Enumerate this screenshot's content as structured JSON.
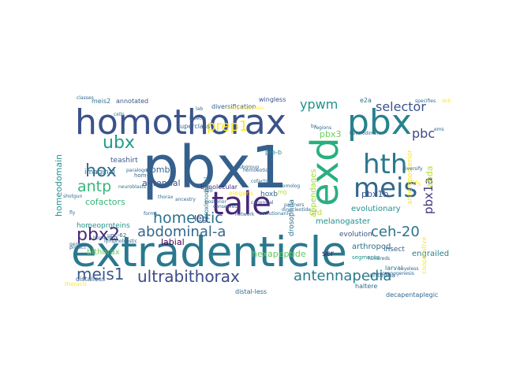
{
  "word_cloud": {
    "words": [
      {
        "text": "pbx1",
        "color": "#35608d"
      },
      {
        "text": "extradenticle",
        "color": "#2a788e"
      },
      {
        "text": "homothorax",
        "color": "#3b528b"
      },
      {
        "text": "exd",
        "color": "#29af7f"
      },
      {
        "text": "pbx",
        "color": "#26828e"
      },
      {
        "text": "tale",
        "color": "#482878"
      },
      {
        "text": "meis",
        "color": "#31688e"
      },
      {
        "text": "hth",
        "color": "#2a788e"
      },
      {
        "text": "ultrabithorax",
        "color": "#3e4a89"
      },
      {
        "text": "antennapedia",
        "color": "#287d8e"
      },
      {
        "text": "abdominal-a",
        "color": "#31688e"
      },
      {
        "text": "ceh-20",
        "color": "#2c728e"
      },
      {
        "text": "pbx2",
        "color": "#482878"
      },
      {
        "text": "meis1",
        "color": "#38598c"
      },
      {
        "text": "homeotic",
        "color": "#2c728e"
      },
      {
        "text": "prep1",
        "color": "#fde725"
      },
      {
        "text": "ubx",
        "color": "#1f9e89"
      },
      {
        "text": "hox",
        "color": "#2c728e"
      },
      {
        "text": "antp",
        "color": "#35b779"
      },
      {
        "text": "ypwm",
        "color": "#21918c"
      },
      {
        "text": "selector",
        "color": "#3b528b"
      },
      {
        "text": "pbc",
        "color": "#3e4a89"
      },
      {
        "text": "pbx1a",
        "color": "#443983"
      },
      {
        "text": "pbx1b",
        "color": "#3b528b"
      },
      {
        "text": "pbx3",
        "color": "#6ece58"
      },
      {
        "text": "abda",
        "color": "#b5de2b"
      },
      {
        "text": "hexapeptide",
        "color": "#5ec962"
      },
      {
        "text": "cofactors",
        "color": "#35b779"
      },
      {
        "text": "antennal",
        "color": "#3b528b"
      },
      {
        "text": "combs",
        "color": "#31688e"
      },
      {
        "text": "homeodomain",
        "color": "#21918c"
      },
      {
        "text": "bithorax",
        "color": "#6ece58"
      },
      {
        "text": "labial",
        "color": "#440154"
      },
      {
        "text": "leg",
        "color": "#3e4a89"
      },
      {
        "text": "arthropod",
        "color": "#2c728e"
      },
      {
        "text": "appendages",
        "color": "#a0da39"
      },
      {
        "text": "evolutionary",
        "color": "#21918c"
      },
      {
        "text": "dfd",
        "color": "#b5de2b"
      },
      {
        "text": "melanogaster",
        "color": "#21918c"
      },
      {
        "text": "scr",
        "color": "#471063"
      },
      {
        "text": "engrailed",
        "color": "#26828e"
      },
      {
        "text": "drosophila",
        "color": "#2c728e"
      },
      {
        "text": "evolution",
        "color": "#3b528b"
      },
      {
        "text": "bimolecular",
        "color": "#472d7b"
      },
      {
        "text": "teashirt",
        "color": "#38598c"
      },
      {
        "text": "imaginal",
        "color": "#31688e"
      },
      {
        "text": "diversification",
        "color": "#35608d"
      },
      {
        "text": "wingless",
        "color": "#3b528b"
      },
      {
        "text": "annotated",
        "color": "#3b528b"
      },
      {
        "text": "meis2",
        "color": "#2c728e"
      },
      {
        "text": "superclass",
        "color": "#35608d"
      },
      {
        "text": "homeoproteins",
        "color": "#21918c"
      },
      {
        "text": "hoxb",
        "color": "#31688e"
      },
      {
        "text": "pre-b",
        "color": "#21918c"
      },
      {
        "text": "insect",
        "color": "#35608d"
      },
      {
        "text": "e2a",
        "color": "#2c728e"
      },
      {
        "text": "anteroposterior",
        "color": "#fde725"
      },
      {
        "text": "distal-less",
        "color": "#31688e"
      },
      {
        "text": "proximodistal",
        "color": "#2a788e"
      },
      {
        "text": "ifs",
        "color": "#fde725"
      },
      {
        "text": "antenna",
        "color": "#31688e"
      },
      {
        "text": "haltere",
        "color": "#31688e"
      },
      {
        "text": "decapentaplegic",
        "color": "#31688e"
      },
      {
        "text": "cooperative",
        "color": "#fde725"
      },
      {
        "text": "larval",
        "color": "#2c728e"
      },
      {
        "text": "dll",
        "color": "#31688e"
      },
      {
        "text": "unc-62",
        "color": "#31688e"
      },
      {
        "text": "segments",
        "color": "#21918c"
      },
      {
        "text": "hom-c",
        "color": "#31688e"
      },
      {
        "text": "elegans",
        "color": "#fde725"
      },
      {
        "text": "mg",
        "color": "#b5de2b"
      },
      {
        "text": "distalless",
        "color": "#35608d"
      },
      {
        "text": "thoracic",
        "color": "#fde725"
      },
      {
        "text": "neuroblasts",
        "color": "#2c728e"
      },
      {
        "text": "paralogous",
        "color": "#31688e"
      },
      {
        "text": "homoeotic",
        "color": "#35608d"
      },
      {
        "text": "homeobox",
        "color": "#31688e"
      },
      {
        "text": "shotgun",
        "color": "#2c728e"
      },
      {
        "text": "fly",
        "color": "#2c728e"
      },
      {
        "text": "thorax",
        "color": "#2c728e"
      },
      {
        "text": "evolutionarily",
        "color": "#2c728e"
      },
      {
        "text": "organogenesis",
        "color": "#31688e"
      },
      {
        "text": "morphogenesis",
        "color": "#fde725"
      },
      {
        "text": "cells",
        "color": "#2c728e"
      },
      {
        "text": "diversify",
        "color": "#35608d"
      },
      {
        "text": "insects",
        "color": "#31688e"
      },
      {
        "text": "specifies",
        "color": "#31688e"
      },
      {
        "text": "classes",
        "color": "#31688e"
      },
      {
        "text": "forms",
        "color": "#31688e"
      },
      {
        "text": "posterior",
        "color": "#31688e"
      },
      {
        "text": "network",
        "color": "#31688e"
      },
      {
        "text": "lymphoblastic",
        "color": "#31688e"
      },
      {
        "text": "heterodimers",
        "color": "#31688e"
      },
      {
        "text": "dinucleotide",
        "color": "#31688e"
      },
      {
        "text": "hundreds",
        "color": "#31688e"
      },
      {
        "text": "project",
        "color": "#31688e"
      },
      {
        "text": "canonical",
        "color": "#31688e"
      },
      {
        "text": "subgroup",
        "color": "#31688e"
      },
      {
        "text": "ancestry",
        "color": "#31688e"
      },
      {
        "text": "regions",
        "color": "#31688e"
      },
      {
        "text": "dnb",
        "color": "#fde725"
      },
      {
        "text": "eyeless",
        "color": "#31688e"
      },
      {
        "text": "ems",
        "color": "#31688e"
      },
      {
        "text": "bx",
        "color": "#31688e"
      },
      {
        "text": "lab",
        "color": "#31688e"
      },
      {
        "text": "conserved",
        "color": "#31688e"
      },
      {
        "text": "cofactor",
        "color": "#31688e"
      },
      {
        "text": "genes",
        "color": "#31688e"
      },
      {
        "text": "partners",
        "color": "#31688e"
      },
      {
        "text": "homolog",
        "color": "#31688e"
      }
    ]
  }
}
